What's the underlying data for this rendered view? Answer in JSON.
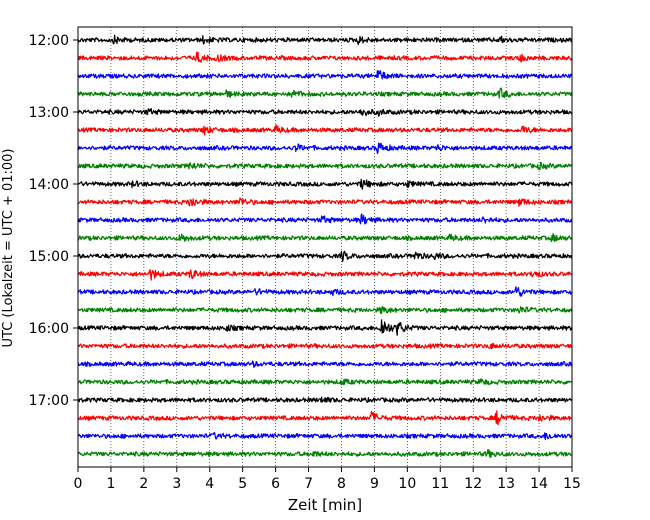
{
  "chart_data": {
    "type": "line",
    "title": "",
    "xlabel": "Zeit  [min]",
    "ylabel": "UTC (Lokalzeit = UTC + 01:00)",
    "xlim": [
      0,
      15
    ],
    "x_ticks": [
      0,
      1,
      2,
      3,
      4,
      5,
      6,
      7,
      8,
      9,
      10,
      11,
      12,
      13,
      14,
      15
    ],
    "row_interval_minutes": 15,
    "y_ticks": [
      "12:00",
      "13:00",
      "14:00",
      "15:00",
      "16:00",
      "17:00"
    ],
    "grid": "vertical dotted at each minute",
    "color_cycle": [
      "#000000",
      "#ff0000",
      "#0000ff",
      "#008000"
    ],
    "series": [
      {
        "start": "12:00",
        "events": [
          {
            "t": 1.1,
            "a": 2
          },
          {
            "t": 3.8,
            "a": 2
          },
          {
            "t": 8.5,
            "a": 2
          },
          {
            "t": 12.8,
            "a": 1.5
          }
        ]
      },
      {
        "start": "12:15",
        "events": [
          {
            "t": 3.6,
            "a": 3
          },
          {
            "t": 4.2,
            "a": 2
          },
          {
            "t": 13.4,
            "a": 2
          }
        ]
      },
      {
        "start": "12:30",
        "events": [
          {
            "t": 9.1,
            "a": 3.5
          }
        ]
      },
      {
        "start": "12:45",
        "events": [
          {
            "t": 4.5,
            "a": 1.5
          },
          {
            "t": 6.5,
            "a": 2
          },
          {
            "t": 12.8,
            "a": 3
          }
        ]
      },
      {
        "start": "13:00",
        "events": [
          {
            "t": 2.1,
            "a": 1.5
          },
          {
            "t": 8.6,
            "a": 2.5
          },
          {
            "t": 9.1,
            "a": 1.5
          }
        ]
      },
      {
        "start": "13:15",
        "events": [
          {
            "t": 3.8,
            "a": 2.5
          },
          {
            "t": 6.0,
            "a": 2
          },
          {
            "t": 13.5,
            "a": 2
          }
        ]
      },
      {
        "start": "13:30",
        "events": [
          {
            "t": 6.6,
            "a": 2
          },
          {
            "t": 9.1,
            "a": 3.5
          },
          {
            "t": 10.9,
            "a": 1.5
          }
        ]
      },
      {
        "start": "13:45",
        "events": [
          {
            "t": 3.4,
            "a": 2
          },
          {
            "t": 14.0,
            "a": 1.5
          }
        ]
      },
      {
        "start": "14:00",
        "events": [
          {
            "t": 1.6,
            "a": 1.5
          },
          {
            "t": 8.6,
            "a": 3
          },
          {
            "t": 10.0,
            "a": 1.5
          }
        ]
      },
      {
        "start": "14:15",
        "events": [
          {
            "t": 3.4,
            "a": 3.5
          },
          {
            "t": 4.9,
            "a": 2.5
          },
          {
            "t": 13.4,
            "a": 2
          }
        ]
      },
      {
        "start": "14:30",
        "events": [
          {
            "t": 7.4,
            "a": 2
          },
          {
            "t": 8.6,
            "a": 3
          },
          {
            "t": 12.3,
            "a": 1.5
          }
        ]
      },
      {
        "start": "14:45",
        "events": [
          {
            "t": 3.1,
            "a": 2.5
          },
          {
            "t": 11.3,
            "a": 1.5
          },
          {
            "t": 14.4,
            "a": 2
          }
        ]
      },
      {
        "start": "15:00",
        "events": [
          {
            "t": 8.0,
            "a": 3
          },
          {
            "t": 10.2,
            "a": 2.5
          },
          {
            "t": 10.8,
            "a": 1.5
          }
        ]
      },
      {
        "start": "15:15",
        "events": [
          {
            "t": 2.2,
            "a": 3
          },
          {
            "t": 3.4,
            "a": 3
          },
          {
            "t": 13.8,
            "a": 2
          }
        ]
      },
      {
        "start": "15:30",
        "events": [
          {
            "t": 5.4,
            "a": 1.5
          },
          {
            "t": 7.7,
            "a": 1.5
          },
          {
            "t": 13.3,
            "a": 3.5
          }
        ]
      },
      {
        "start": "15:45",
        "events": [
          {
            "t": 9.2,
            "a": 2
          },
          {
            "t": 13.4,
            "a": 2
          }
        ]
      },
      {
        "start": "16:00",
        "events": [
          {
            "t": 4.5,
            "a": 1.5
          },
          {
            "t": 9.2,
            "a": 7
          },
          {
            "t": 9.7,
            "a": 4
          }
        ]
      },
      {
        "start": "16:15",
        "events": [
          {
            "t": 12.5,
            "a": 1
          }
        ]
      },
      {
        "start": "16:30",
        "events": [
          {
            "t": 5.3,
            "a": 1
          }
        ]
      },
      {
        "start": "16:45",
        "events": [
          {
            "t": 8.0,
            "a": 1.5
          },
          {
            "t": 12.2,
            "a": 1.5
          }
        ]
      },
      {
        "start": "17:00",
        "events": [
          {
            "t": 7.4,
            "a": 1.5
          }
        ]
      },
      {
        "start": "17:15",
        "events": [
          {
            "t": 8.9,
            "a": 3.5
          },
          {
            "t": 12.7,
            "a": 4
          },
          {
            "t": 14.0,
            "a": 2
          }
        ]
      },
      {
        "start": "17:30",
        "events": [
          {
            "t": 4.1,
            "a": 1.5
          },
          {
            "t": 14.2,
            "a": 2
          }
        ]
      },
      {
        "start": "17:45",
        "events": [
          {
            "t": 7.1,
            "a": 1.5
          },
          {
            "t": 12.4,
            "a": 2
          }
        ]
      }
    ]
  }
}
